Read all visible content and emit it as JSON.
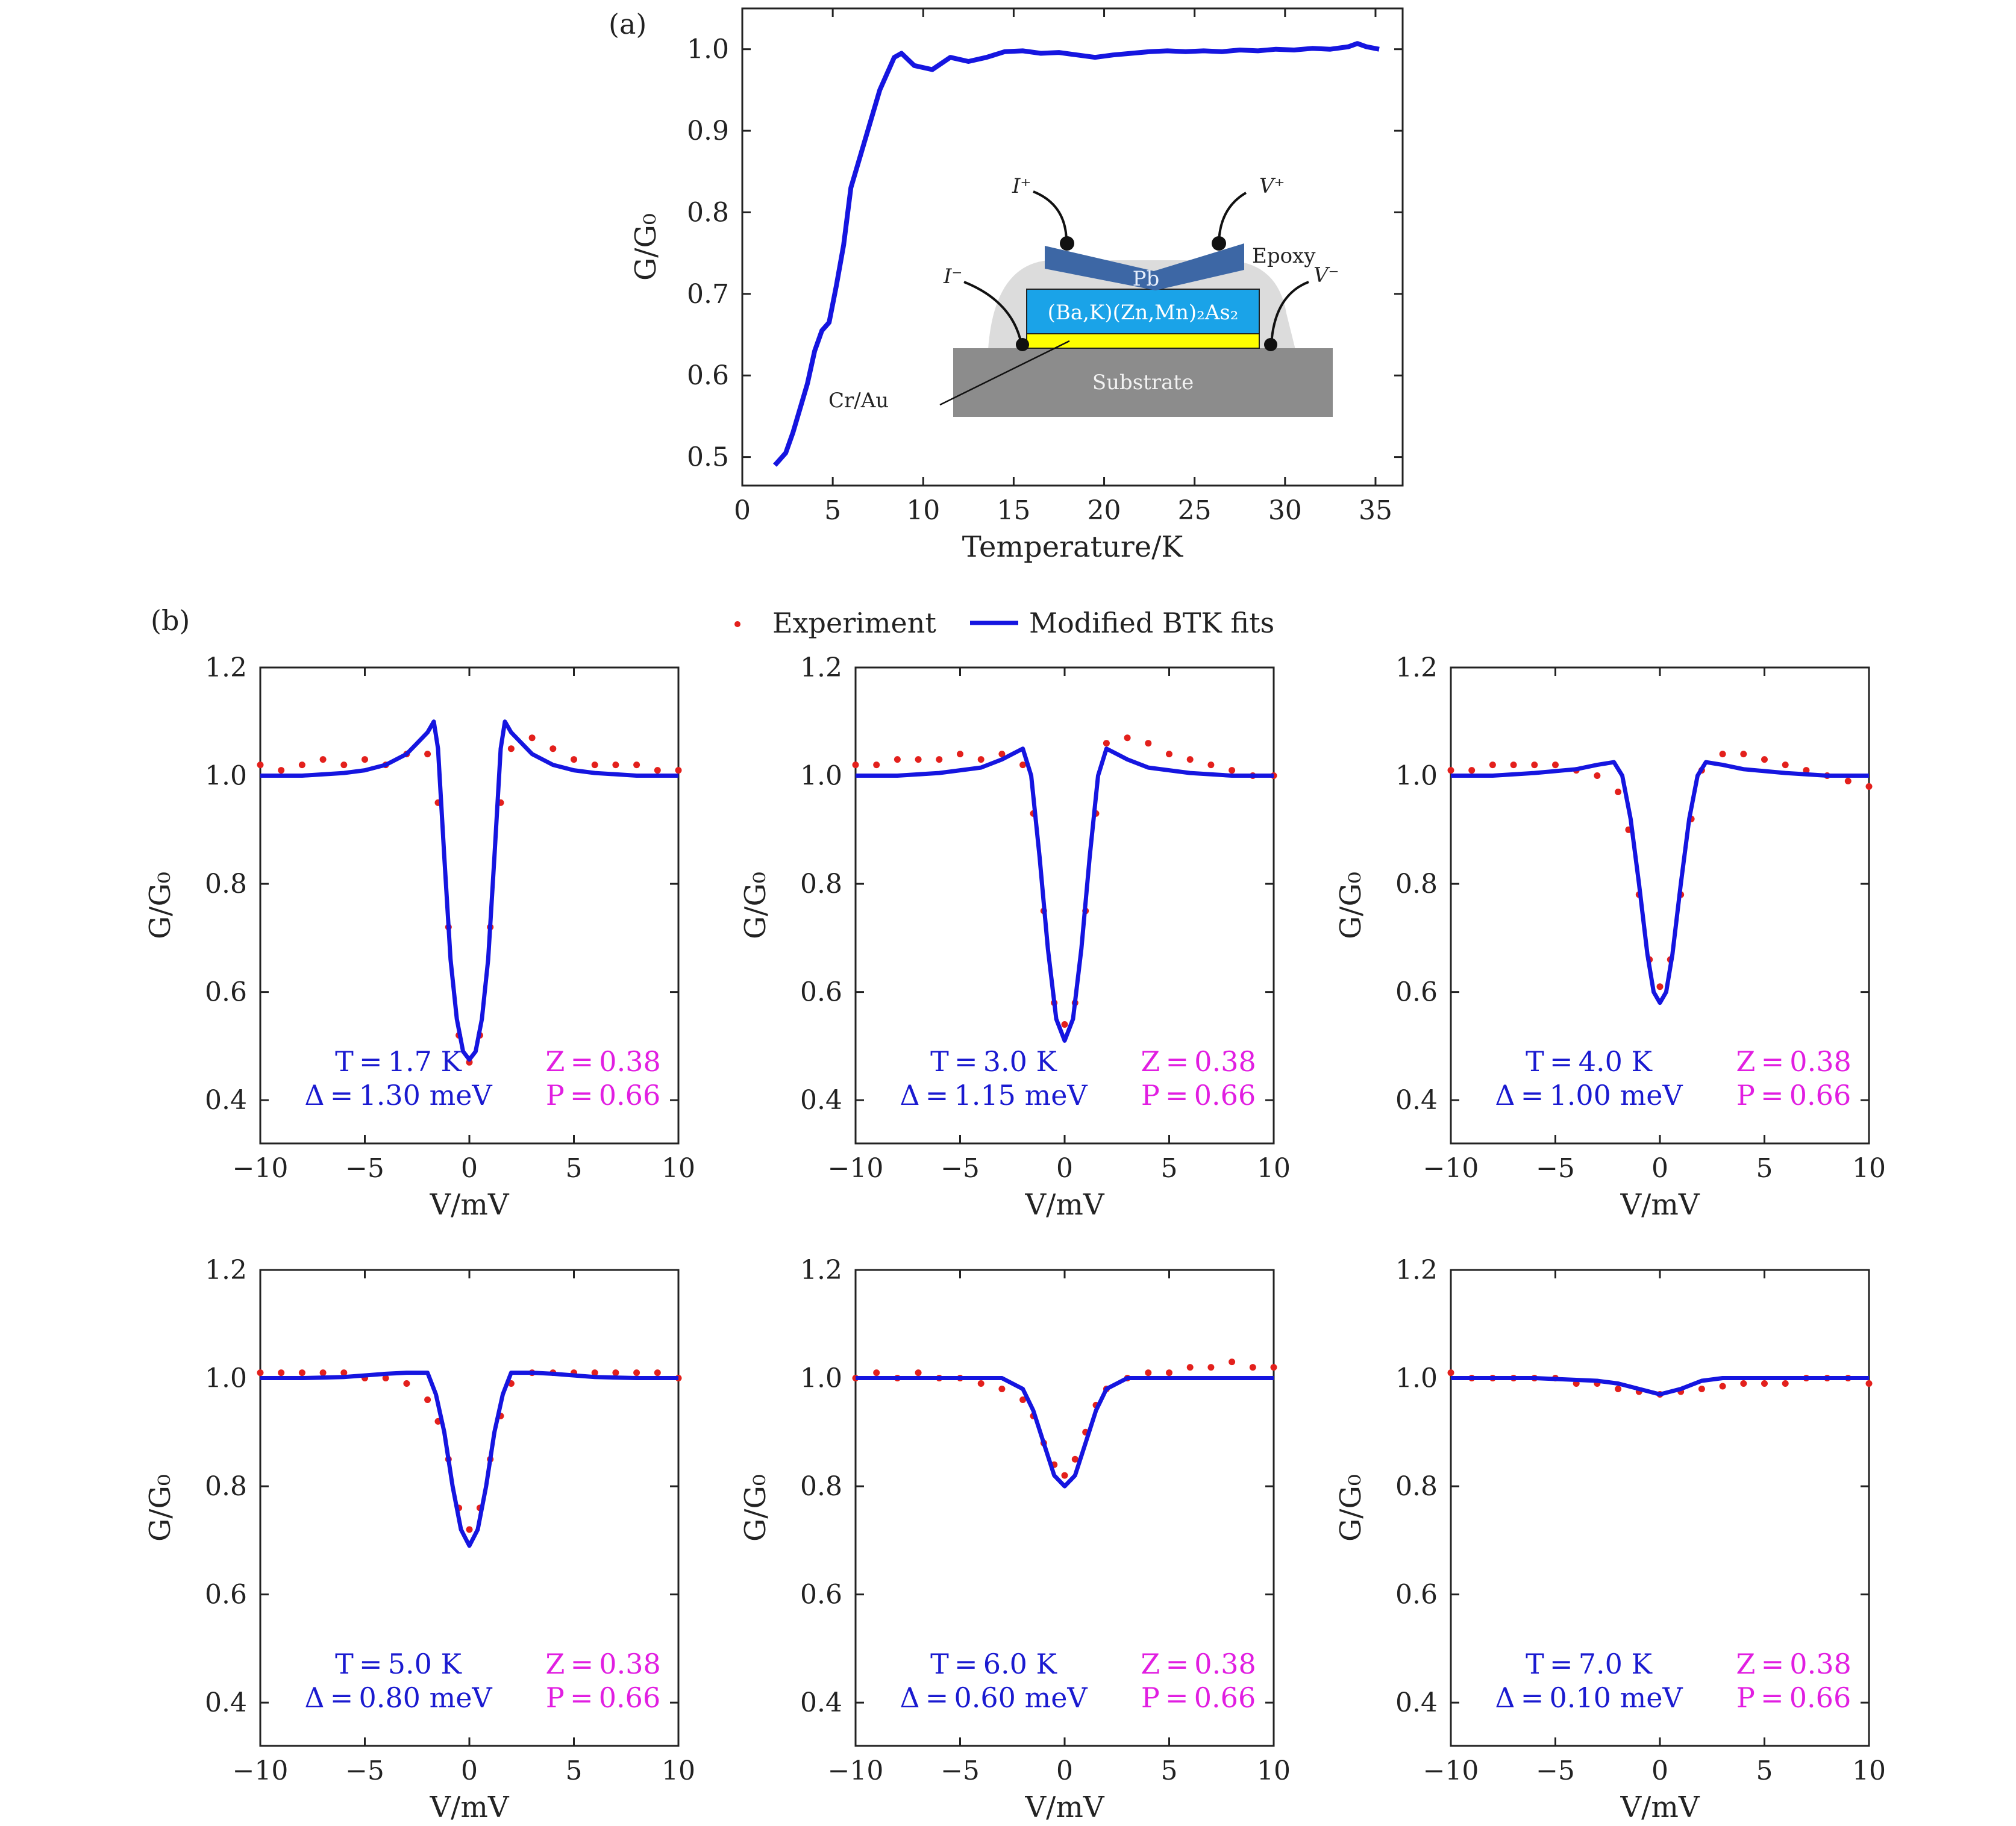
{
  "panel_a": {
    "tag": "(a)",
    "inset": {
      "layer_label": "(Ba,K)(Zn,Mn)₂As₂",
      "pb_label": "Pb",
      "epoxy_label": "Epoxy",
      "substrate_label": "Substrate",
      "crau_label": "Cr/Au",
      "i_plus": "I⁺",
      "i_minus": "I⁻",
      "v_plus": "V⁺",
      "v_minus": "V⁻",
      "colors": {
        "pb": "#3d67a5",
        "layer": "#1aa3e8",
        "crau": "#ffff00",
        "substrate": "#8c8c8c",
        "epoxy": "#dcdcdc"
      }
    }
  },
  "panel_b": {
    "tag": "(b)",
    "legend": {
      "experiment": "Experiment",
      "fit": "Modified BTK fits"
    },
    "panels": [
      {
        "T": "T = 1.7 K",
        "Delta": "Δ = 1.30 meV",
        "Z": "Z = 0.38",
        "P": "P = 0.66"
      },
      {
        "T": "T = 3.0 K",
        "Delta": "Δ = 1.15 meV",
        "Z": "Z = 0.38",
        "P": "P = 0.66"
      },
      {
        "T": "T = 4.0 K",
        "Delta": "Δ = 1.00 meV",
        "Z": "Z = 0.38",
        "P": "P = 0.66"
      },
      {
        "T": "T = 5.0 K",
        "Delta": "Δ = 0.80 meV",
        "Z": "Z = 0.38",
        "P": "P = 0.66"
      },
      {
        "T": "T = 6.0 K",
        "Delta": "Δ = 0.60 meV",
        "Z": "Z = 0.38",
        "P": "P = 0.66"
      },
      {
        "T": "T = 7.0 K",
        "Delta": "Δ = 0.10 meV",
        "Z": "Z = 0.38",
        "P": "P = 0.66"
      }
    ]
  },
  "chart_data": [
    {
      "type": "line",
      "panel": "(a)",
      "xlabel": "Temperature/K",
      "ylabel": "G/G₀",
      "xlim": [
        0,
        36.5
      ],
      "ylim": [
        0.465,
        1.05
      ],
      "xticks": [
        "0",
        "5",
        "10",
        "15",
        "20",
        "25",
        "30",
        "35"
      ],
      "yticks": [
        "0.5",
        "0.6",
        "0.7",
        "0.8",
        "0.9",
        "1.0"
      ],
      "color": "#1515e0",
      "x": [
        1.8,
        2.0,
        2.4,
        2.8,
        3.2,
        3.6,
        4.0,
        4.4,
        4.8,
        5.2,
        5.6,
        6.0,
        6.4,
        6.8,
        7.2,
        7.6,
        8.0,
        8.4,
        8.8,
        9.5,
        10.5,
        11.5,
        12.5,
        13.5,
        14.5,
        15.5,
        16.5,
        17.5,
        18.5,
        19.5,
        20.5,
        21.5,
        22.5,
        23.5,
        24.5,
        25.5,
        26.5,
        27.5,
        28.5,
        29.5,
        30.5,
        31.5,
        32.5,
        33.5,
        34.0,
        34.5,
        35.2
      ],
      "y": [
        0.49,
        0.495,
        0.505,
        0.53,
        0.56,
        0.59,
        0.63,
        0.655,
        0.665,
        0.71,
        0.76,
        0.83,
        0.86,
        0.89,
        0.92,
        0.95,
        0.97,
        0.99,
        0.995,
        0.98,
        0.975,
        0.99,
        0.985,
        0.99,
        0.997,
        0.998,
        0.995,
        0.996,
        0.993,
        0.99,
        0.993,
        0.995,
        0.997,
        0.998,
        0.997,
        0.998,
        0.997,
        0.999,
        0.998,
        1.0,
        0.999,
        1.001,
        1.0,
        1.003,
        1.007,
        1.003,
        1.0
      ]
    },
    {
      "type": "scatter+line",
      "panel": "(b) 1",
      "xlabel": "V/mV",
      "ylabel": "G/G₀",
      "xlim": [
        -10,
        10
      ],
      "ylim": [
        0.32,
        1.2
      ],
      "xticks": [
        "−10",
        "−5",
        "0",
        "5",
        "10"
      ],
      "yticks": [
        "0.4",
        "0.6",
        "0.8",
        "1.0",
        "1.2"
      ],
      "series": [
        {
          "name": "Experiment",
          "color": "#e3201c",
          "x": [
            -10,
            -9,
            -8,
            -7,
            -6,
            -5,
            -4,
            -3,
            -2,
            -1.5,
            -1,
            -0.5,
            0,
            0.5,
            1,
            1.5,
            2,
            3,
            4,
            5,
            6,
            7,
            8,
            9,
            10
          ],
          "y": [
            1.02,
            1.01,
            1.02,
            1.03,
            1.02,
            1.03,
            1.02,
            1.04,
            1.04,
            0.95,
            0.72,
            0.52,
            0.47,
            0.52,
            0.72,
            0.95,
            1.05,
            1.07,
            1.05,
            1.03,
            1.02,
            1.02,
            1.02,
            1.01,
            1.01
          ]
        },
        {
          "name": "Modified BTK fits",
          "color": "#1515e0",
          "x": [
            -10,
            -8,
            -6,
            -5,
            -4,
            -3,
            -2.5,
            -2,
            -1.7,
            -1.5,
            -1.2,
            -0.9,
            -0.6,
            -0.3,
            0,
            0.3,
            0.6,
            0.9,
            1.2,
            1.5,
            1.7,
            2,
            2.5,
            3,
            4,
            5,
            6,
            8,
            10
          ],
          "y": [
            1.0,
            1.0,
            1.005,
            1.01,
            1.02,
            1.04,
            1.06,
            1.08,
            1.1,
            1.05,
            0.85,
            0.66,
            0.55,
            0.49,
            0.475,
            0.49,
            0.55,
            0.66,
            0.85,
            1.05,
            1.1,
            1.08,
            1.06,
            1.04,
            1.02,
            1.01,
            1.005,
            1.0,
            1.0
          ]
        }
      ]
    },
    {
      "type": "scatter+line",
      "panel": "(b) 2",
      "xlabel": "V/mV",
      "ylabel": "G/G₀",
      "xlim": [
        -10,
        10
      ],
      "ylim": [
        0.32,
        1.2
      ],
      "xticks": [
        "−10",
        "−5",
        "0",
        "5",
        "10"
      ],
      "yticks": [
        "0.4",
        "0.6",
        "0.8",
        "1.0",
        "1.2"
      ],
      "series": [
        {
          "name": "Experiment",
          "color": "#e3201c",
          "x": [
            -10,
            -9,
            -8,
            -7,
            -6,
            -5,
            -4,
            -3,
            -2,
            -1.5,
            -1,
            -0.5,
            0,
            0.5,
            1,
            1.5,
            2,
            3,
            4,
            5,
            6,
            7,
            8,
            9,
            10
          ],
          "y": [
            1.02,
            1.02,
            1.03,
            1.03,
            1.03,
            1.04,
            1.03,
            1.04,
            1.02,
            0.93,
            0.75,
            0.58,
            0.54,
            0.58,
            0.75,
            0.93,
            1.06,
            1.07,
            1.06,
            1.04,
            1.03,
            1.02,
            1.01,
            1.0,
            1.0
          ]
        },
        {
          "name": "Modified BTK fits",
          "color": "#1515e0",
          "x": [
            -10,
            -8,
            -6,
            -4,
            -3,
            -2.5,
            -2,
            -1.6,
            -1.2,
            -0.8,
            -0.4,
            0,
            0.4,
            0.8,
            1.2,
            1.6,
            2,
            2.5,
            3,
            4,
            6,
            8,
            10
          ],
          "y": [
            1.0,
            1.0,
            1.005,
            1.015,
            1.03,
            1.04,
            1.05,
            1.0,
            0.85,
            0.68,
            0.55,
            0.51,
            0.55,
            0.68,
            0.85,
            1.0,
            1.05,
            1.04,
            1.03,
            1.015,
            1.005,
            1.0,
            1.0
          ]
        }
      ]
    },
    {
      "type": "scatter+line",
      "panel": "(b) 3",
      "xlabel": "V/mV",
      "ylabel": "G/G₀",
      "xlim": [
        -10,
        10
      ],
      "ylim": [
        0.32,
        1.2
      ],
      "xticks": [
        "−10",
        "−5",
        "0",
        "5",
        "10"
      ],
      "yticks": [
        "0.4",
        "0.6",
        "0.8",
        "1.0",
        "1.2"
      ],
      "series": [
        {
          "name": "Experiment",
          "color": "#e3201c",
          "x": [
            -10,
            -9,
            -8,
            -7,
            -6,
            -5,
            -4,
            -3,
            -2,
            -1.5,
            -1,
            -0.5,
            0,
            0.5,
            1,
            1.5,
            2,
            3,
            4,
            5,
            6,
            7,
            8,
            9,
            10
          ],
          "y": [
            1.01,
            1.01,
            1.02,
            1.02,
            1.02,
            1.02,
            1.01,
            1.0,
            0.97,
            0.9,
            0.78,
            0.66,
            0.61,
            0.66,
            0.78,
            0.92,
            1.01,
            1.04,
            1.04,
            1.03,
            1.02,
            1.01,
            1.0,
            0.99,
            0.98
          ]
        },
        {
          "name": "Modified BTK fits",
          "color": "#1515e0",
          "x": [
            -10,
            -8,
            -6,
            -4,
            -3,
            -2.2,
            -1.8,
            -1.4,
            -1.0,
            -0.6,
            -0.3,
            0,
            0.3,
            0.6,
            1.0,
            1.4,
            1.8,
            2.2,
            3,
            4,
            6,
            8,
            10
          ],
          "y": [
            1.0,
            1.0,
            1.005,
            1.012,
            1.02,
            1.025,
            1.0,
            0.92,
            0.8,
            0.67,
            0.6,
            0.58,
            0.6,
            0.67,
            0.8,
            0.92,
            1.0,
            1.025,
            1.02,
            1.012,
            1.005,
            1.0,
            1.0
          ]
        }
      ]
    },
    {
      "type": "scatter+line",
      "panel": "(b) 4",
      "xlabel": "V/mV",
      "ylabel": "G/G₀",
      "xlim": [
        -10,
        10
      ],
      "ylim": [
        0.32,
        1.2
      ],
      "xticks": [
        "−10",
        "−5",
        "0",
        "5",
        "10"
      ],
      "yticks": [
        "0.4",
        "0.6",
        "0.8",
        "1.0",
        "1.2"
      ],
      "series": [
        {
          "name": "Experiment",
          "color": "#e3201c",
          "x": [
            -10,
            -9,
            -8,
            -7,
            -6,
            -5,
            -4,
            -3,
            -2,
            -1.5,
            -1,
            -0.5,
            0,
            0.5,
            1,
            1.5,
            2,
            3,
            4,
            5,
            6,
            7,
            8,
            9,
            10
          ],
          "y": [
            1.01,
            1.01,
            1.01,
            1.01,
            1.01,
            1.0,
            1.0,
            0.99,
            0.96,
            0.92,
            0.85,
            0.76,
            0.72,
            0.76,
            0.85,
            0.93,
            0.99,
            1.01,
            1.01,
            1.01,
            1.01,
            1.01,
            1.01,
            1.01,
            1.0
          ]
        },
        {
          "name": "Modified BTK fits",
          "color": "#1515e0",
          "x": [
            -10,
            -8,
            -6,
            -4,
            -3,
            -2,
            -1.6,
            -1.2,
            -0.8,
            -0.4,
            0,
            0.4,
            0.8,
            1.2,
            1.6,
            2,
            3,
            4,
            6,
            8,
            10
          ],
          "y": [
            1.0,
            1.0,
            1.002,
            1.008,
            1.01,
            1.01,
            0.97,
            0.9,
            0.8,
            0.72,
            0.69,
            0.72,
            0.8,
            0.9,
            0.97,
            1.01,
            1.01,
            1.008,
            1.002,
            1.0,
            1.0
          ]
        }
      ]
    },
    {
      "type": "scatter+line",
      "panel": "(b) 5",
      "xlabel": "V/mV",
      "ylabel": "G/G₀",
      "xlim": [
        -10,
        10
      ],
      "ylim": [
        0.32,
        1.2
      ],
      "xticks": [
        "−10",
        "−5",
        "0",
        "5",
        "10"
      ],
      "yticks": [
        "0.4",
        "0.6",
        "0.8",
        "1.0",
        "1.2"
      ],
      "series": [
        {
          "name": "Experiment",
          "color": "#e3201c",
          "x": [
            -10,
            -9,
            -8,
            -7,
            -6,
            -5,
            -4,
            -3,
            -2,
            -1.5,
            -1,
            -0.5,
            0,
            0.5,
            1,
            1.5,
            2,
            3,
            4,
            5,
            6,
            7,
            8,
            9,
            10
          ],
          "y": [
            1.0,
            1.01,
            1.0,
            1.01,
            1.0,
            1.0,
            0.99,
            0.98,
            0.96,
            0.93,
            0.88,
            0.84,
            0.82,
            0.85,
            0.9,
            0.95,
            0.98,
            1.0,
            1.01,
            1.01,
            1.02,
            1.02,
            1.03,
            1.02,
            1.02
          ]
        },
        {
          "name": "Modified BTK fits",
          "color": "#1515e0",
          "x": [
            -10,
            -8,
            -6,
            -4,
            -3,
            -2,
            -1.5,
            -1.0,
            -0.5,
            0,
            0.5,
            1.0,
            1.5,
            2,
            3,
            4,
            6,
            8,
            10
          ],
          "y": [
            1.0,
            1.0,
            1.0,
            1.0,
            1.0,
            0.98,
            0.94,
            0.88,
            0.82,
            0.8,
            0.82,
            0.88,
            0.94,
            0.98,
            1.0,
            1.0,
            1.0,
            1.0,
            1.0
          ]
        }
      ]
    },
    {
      "type": "scatter+line",
      "panel": "(b) 6",
      "xlabel": "V/mV",
      "ylabel": "G/G₀",
      "xlim": [
        -10,
        10
      ],
      "ylim": [
        0.32,
        1.2
      ],
      "xticks": [
        "−10",
        "−5",
        "0",
        "5",
        "10"
      ],
      "yticks": [
        "0.4",
        "0.6",
        "0.8",
        "1.0",
        "1.2"
      ],
      "series": [
        {
          "name": "Experiment",
          "color": "#e3201c",
          "x": [
            -10,
            -9,
            -8,
            -7,
            -6,
            -5,
            -4,
            -3,
            -2,
            -1,
            0,
            1,
            2,
            3,
            4,
            5,
            6,
            7,
            8,
            9,
            10
          ],
          "y": [
            1.01,
            1.0,
            1.0,
            1.0,
            1.0,
            1.0,
            0.99,
            0.99,
            0.98,
            0.975,
            0.97,
            0.975,
            0.98,
            0.985,
            0.99,
            0.99,
            0.99,
            1.0,
            1.0,
            1.0,
            0.99
          ]
        },
        {
          "name": "Modified BTK fits",
          "color": "#1515e0",
          "x": [
            -10,
            -6,
            -3,
            -2,
            -1,
            -0.5,
            0,
            0.5,
            1,
            2,
            3,
            6,
            10
          ],
          "y": [
            1.0,
            1.0,
            0.995,
            0.99,
            0.98,
            0.975,
            0.97,
            0.975,
            0.98,
            0.995,
            1.0,
            1.0,
            1.0
          ]
        }
      ]
    }
  ]
}
